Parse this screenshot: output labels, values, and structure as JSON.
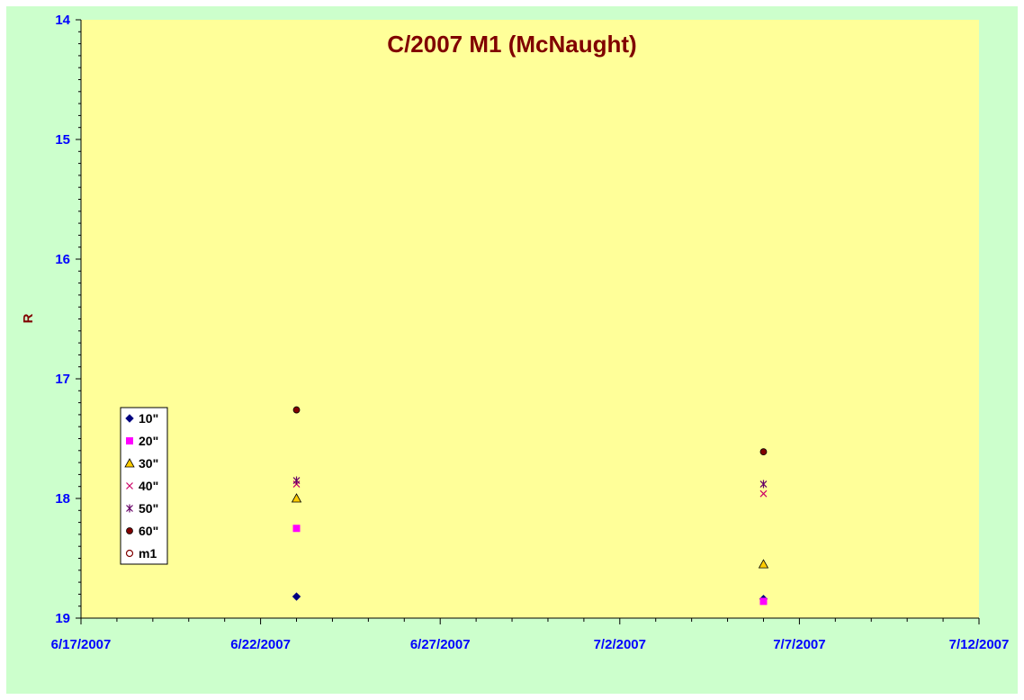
{
  "chart_data": {
    "type": "scatter",
    "title": "C/2007 M1 (McNaught)",
    "ylabel": "R",
    "xlabel": "",
    "y_reversed": true,
    "ylim": [
      14,
      19
    ],
    "yticks": [
      "14",
      "15",
      "16",
      "17",
      "18",
      "19"
    ],
    "xlim": [
      "6/17/2007",
      "7/12/2007"
    ],
    "xticks": [
      "6/17/2007",
      "6/22/2007",
      "6/27/2007",
      "7/2/2007",
      "7/7/2007",
      "7/12/2007"
    ],
    "grid": false,
    "legend_position": "left",
    "colors": {
      "plot_background": "#ffff99",
      "chart_background": "#ccffcc",
      "title": "#800000",
      "axis_labels": "#0000ff"
    },
    "series": [
      {
        "name": "10\"",
        "marker": "diamond",
        "color": "#000080",
        "points": [
          {
            "x": "6/23/2007",
            "y": 18.82
          },
          {
            "x": "7/6/2007",
            "y": 18.84
          }
        ]
      },
      {
        "name": "20\"",
        "marker": "square",
        "color": "#ff00ff",
        "points": [
          {
            "x": "6/23/2007",
            "y": 18.25
          },
          {
            "x": "7/6/2007",
            "y": 18.86
          }
        ]
      },
      {
        "name": "30\"",
        "marker": "triangle",
        "color": "#ffcc00",
        "points": [
          {
            "x": "6/23/2007",
            "y": 18.0
          },
          {
            "x": "7/6/2007",
            "y": 18.55
          }
        ]
      },
      {
        "name": "40\"",
        "marker": "x",
        "color": "#cc0066",
        "points": [
          {
            "x": "6/23/2007",
            "y": 17.88
          },
          {
            "x": "7/6/2007",
            "y": 17.96
          }
        ]
      },
      {
        "name": "50\"",
        "marker": "star",
        "color": "#660066",
        "points": [
          {
            "x": "6/23/2007",
            "y": 17.85
          },
          {
            "x": "7/6/2007",
            "y": 17.88
          }
        ]
      },
      {
        "name": "60\"",
        "marker": "circle-filled",
        "color": "#800000",
        "points": [
          {
            "x": "6/23/2007",
            "y": 17.26
          },
          {
            "x": "7/6/2007",
            "y": 17.61
          }
        ]
      },
      {
        "name": "m1",
        "marker": "circle-open",
        "color": "#800000",
        "points": []
      }
    ]
  }
}
